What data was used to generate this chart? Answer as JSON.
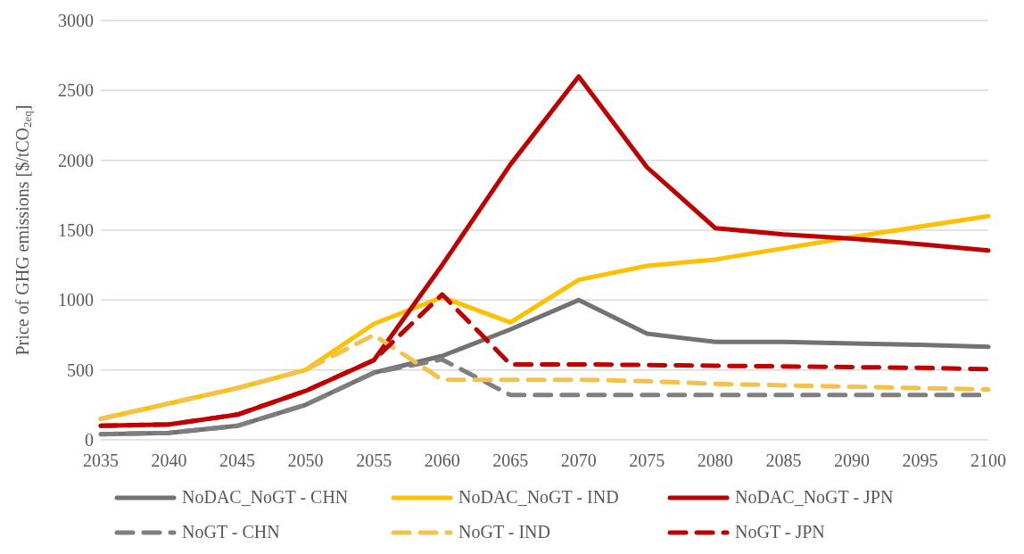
{
  "chart_data": {
    "type": "line",
    "ylabel": "Price of GHG emissions [$/tCO$_{2eq}$]",
    "categories": [
      "2035",
      "2040",
      "2045",
      "2050",
      "2055",
      "2060",
      "2065",
      "2070",
      "2075",
      "2080",
      "2085",
      "2090",
      "2095",
      "2100"
    ],
    "series": [
      {
        "name": "NoDAC_NoGT - CHN",
        "color": "#767171",
        "line_style": "solid",
        "values": [
          40,
          50,
          100,
          250,
          480,
          600,
          790,
          1000,
          760,
          700,
          700,
          690,
          680,
          665
        ]
      },
      {
        "name": "NoDAC_NoGT - IND",
        "color": "#ffc000",
        "line_style": "solid",
        "values": [
          150,
          260,
          370,
          500,
          830,
          1020,
          840,
          1145,
          1245,
          1290,
          1370,
          1450,
          1525,
          1600
        ]
      },
      {
        "name": "NoDAC_NoGT - JPN",
        "color": "#c00000",
        "line_style": "solid",
        "values": [
          100,
          110,
          180,
          350,
          570,
          1250,
          1970,
          2600,
          1950,
          1515,
          1470,
          1440,
          1400,
          1355
        ]
      },
      {
        "name": "NoGT - CHN",
        "color": "#7f7f7f",
        "line_style": "dashed",
        "values": [
          40,
          50,
          100,
          250,
          480,
          575,
          320,
          320,
          320,
          320,
          320,
          320,
          320,
          320
        ]
      },
      {
        "name": "NoGT - IND",
        "color": "#f4c24a",
        "line_style": "dashed",
        "values": [
          150,
          260,
          370,
          500,
          750,
          430,
          430,
          430,
          420,
          400,
          390,
          380,
          370,
          360
        ]
      },
      {
        "name": "NoGT - JPN",
        "color": "#c00000",
        "line_style": "dashed",
        "values": [
          100,
          110,
          180,
          350,
          570,
          1040,
          540,
          540,
          535,
          530,
          525,
          520,
          515,
          505
        ]
      }
    ],
    "ylim": [
      0,
      3000
    ],
    "yticks": [
      0,
      500,
      1000,
      1500,
      2000,
      2500,
      3000
    ],
    "grid": "y",
    "legend": "bottom",
    "marker": "none"
  }
}
